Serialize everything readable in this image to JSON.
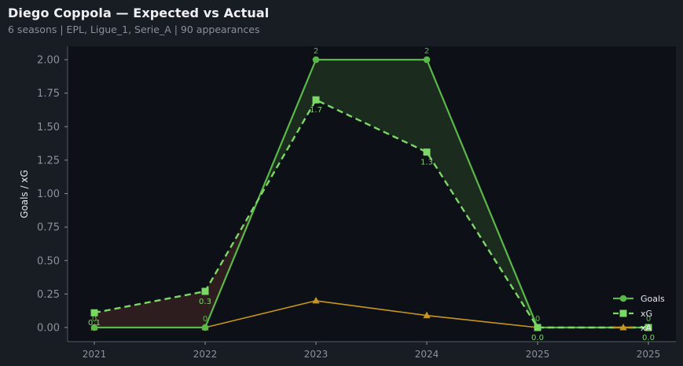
{
  "header": {
    "title": "Diego Coppola — Expected vs Actual",
    "subtitle": "6 seasons | EPL, Ligue_1, Serie_A | 90 appearances"
  },
  "colors": {
    "background": "#181c23",
    "plot_background": "#0d1017",
    "goals": "#5ab84a",
    "xg": "#7bd866",
    "xa": "#c8961e",
    "overperformance_fill": "#1b2c1f",
    "underperformance_fill": "#2e1d1f",
    "axis": "#555a63"
  },
  "chart_data": {
    "type": "line",
    "title": "Diego Coppola — Expected vs Actual",
    "subtitle": "6 seasons | EPL, Ligue_1, Serie_A | 90 appearances",
    "xlabel": "",
    "ylabel": "Goals / xG",
    "categories": [
      "2021",
      "2022",
      "2023",
      "2024",
      "2025",
      "2025"
    ],
    "ylim": [
      -0.1,
      2.1
    ],
    "yticks": [
      "0.00",
      "0.25",
      "0.50",
      "0.75",
      "1.00",
      "1.25",
      "1.50",
      "1.75",
      "2.00"
    ],
    "grid": false,
    "legend_position": "lower right",
    "series": [
      {
        "name": "Goals",
        "marker": "circle",
        "style": "solid",
        "values": [
          0,
          0,
          2,
          2,
          0,
          0
        ],
        "labels": [
          "0",
          "0",
          "2",
          "2",
          "0",
          "0"
        ]
      },
      {
        "name": "xG",
        "marker": "square",
        "style": "dashed",
        "values": [
          0.11,
          0.27,
          1.7,
          1.31,
          0.0,
          0.0
        ],
        "labels": [
          "0.1",
          "0.3",
          "1.7",
          "1.3",
          "0.0",
          "0.0"
        ]
      },
      {
        "name": "xA",
        "marker": "triangle",
        "style": "solid",
        "values": [
          0.0,
          0.0,
          0.2,
          0.09,
          0.0,
          0.0
        ]
      }
    ]
  }
}
